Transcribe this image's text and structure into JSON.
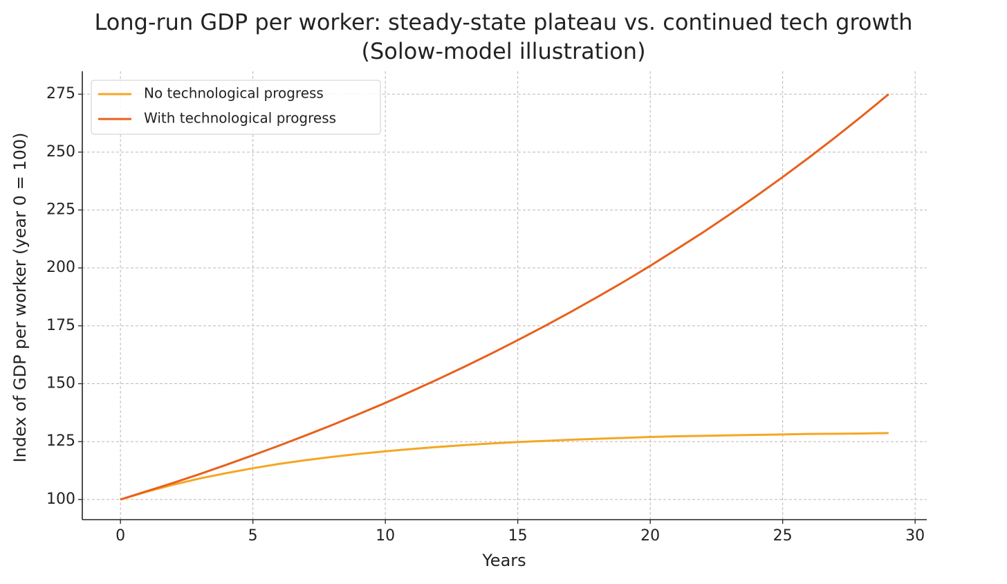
{
  "chart_data": {
    "type": "line",
    "title": "Long-run GDP per worker: steady-state plateau vs. continued tech growth",
    "subtitle": "(Solow-model illustration)",
    "x_label": "Years",
    "y_label": "Index of GDP per worker (year 0 = 100)",
    "x": [
      0,
      1,
      2,
      3,
      4,
      5,
      6,
      7,
      8,
      9,
      10,
      11,
      12,
      13,
      14,
      15,
      16,
      17,
      18,
      19,
      20,
      21,
      22,
      23,
      24,
      25,
      26,
      27,
      28,
      29
    ],
    "series": [
      {
        "name": "No technological progress",
        "color": "#f5a623",
        "values": [
          100,
          103.4,
          106.4,
          109.1,
          111.4,
          113.5,
          115.4,
          117.0,
          118.4,
          119.7,
          120.8,
          121.8,
          122.7,
          123.5,
          124.2,
          124.8,
          125.3,
          125.8,
          126.2,
          126.6,
          127.0,
          127.3,
          127.5,
          127.7,
          127.9,
          128.1,
          128.3,
          128.4,
          128.5,
          128.7
        ]
      },
      {
        "name": "With technological progress",
        "color": "#e8601c",
        "values": [
          100,
          103.6,
          107.2,
          111.0,
          115.0,
          119.1,
          123.3,
          127.7,
          132.2,
          136.9,
          141.7,
          146.8,
          152.0,
          157.4,
          163.0,
          168.8,
          174.8,
          181.0,
          187.4,
          194.0,
          200.9,
          208.1,
          215.4,
          223.1,
          231.0,
          239.2,
          247.7,
          256.5,
          265.6,
          275.0
        ]
      }
    ],
    "xlim": [
      -1.44,
      30.44
    ],
    "ylim": [
      91.3,
      284.9
    ],
    "xticks": [
      0,
      5,
      10,
      15,
      20,
      25,
      30
    ],
    "yticks": [
      100,
      125,
      150,
      175,
      200,
      225,
      250,
      275
    ],
    "grid": true,
    "legend": "upper-left"
  }
}
